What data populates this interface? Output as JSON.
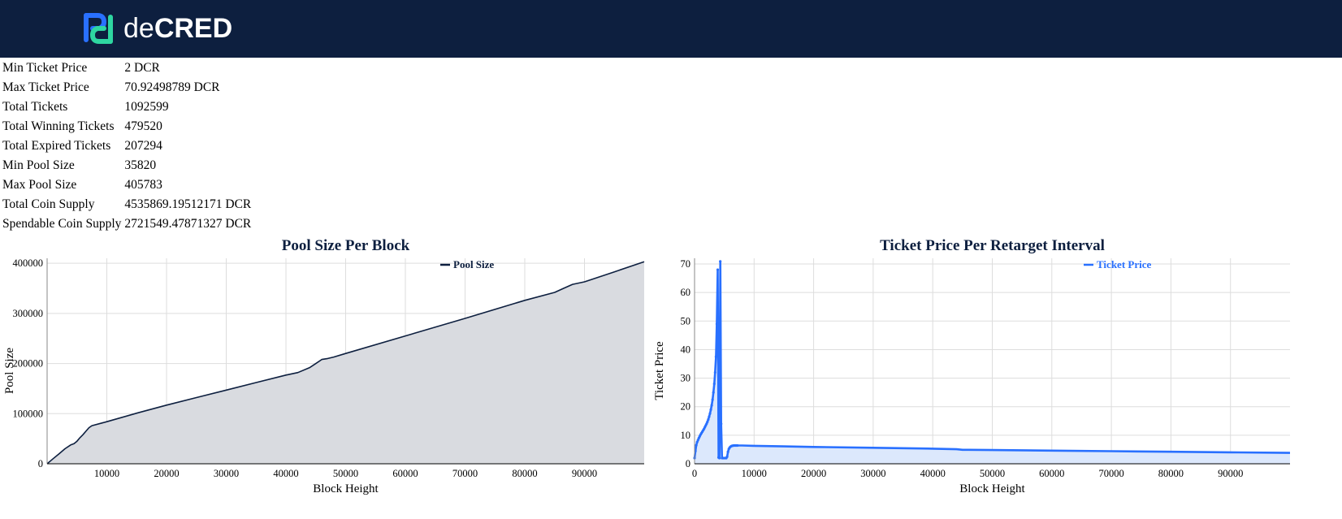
{
  "header": {
    "logo_text": "decred",
    "logo_text_light": "de",
    "logo_text_bold": "CRED",
    "logo_colors": {
      "blue": "#2970ff",
      "teal": "#2ed6a1"
    },
    "background": "#0d1f3f"
  },
  "stats": [
    {
      "label": "Min Ticket Price",
      "value": "2 DCR"
    },
    {
      "label": "Max Ticket Price",
      "value": "70.92498789 DCR"
    },
    {
      "label": "Total Tickets",
      "value": "1092599"
    },
    {
      "label": "Total Winning Tickets",
      "value": "479520"
    },
    {
      "label": "Total Expired Tickets",
      "value": "207294"
    },
    {
      "label": "Min Pool Size",
      "value": "35820"
    },
    {
      "label": "Max Pool Size",
      "value": "405783"
    },
    {
      "label": "Total Coin Supply",
      "value": "4535869.19512171 DCR"
    },
    {
      "label": "Spendable Coin Supply",
      "value": "2721549.47871327 DCR"
    }
  ],
  "chart_data": [
    {
      "type": "area",
      "title": "Pool Size Per Block",
      "xlabel": "Block Height",
      "ylabel": "Pool Size",
      "xlim": [
        0,
        100000
      ],
      "ylim": [
        0,
        410000
      ],
      "xticks": [
        10000,
        20000,
        30000,
        40000,
        50000,
        60000,
        70000,
        80000,
        90000
      ],
      "yticks": [
        0,
        100000,
        200000,
        300000,
        400000
      ],
      "grid": true,
      "legend_position": "top-right",
      "series": [
        {
          "name": "Pool Size",
          "color": "#0d1f3f",
          "fill": "#d9dbe0",
          "x": [
            0,
            1000,
            2000,
            3000,
            4000,
            4500,
            5000,
            5500,
            6000,
            6500,
            7000,
            7500,
            10000,
            15000,
            20000,
            25000,
            30000,
            35000,
            40000,
            42000,
            44000,
            45000,
            46000,
            47000,
            48000,
            50000,
            60000,
            70000,
            80000,
            85000,
            86500,
            88000,
            90000,
            95000,
            100000
          ],
          "values": [
            0,
            10000,
            20000,
            30000,
            38000,
            40000,
            45000,
            52000,
            58000,
            65000,
            72000,
            76000,
            84000,
            101000,
            117000,
            132000,
            147000,
            162000,
            177000,
            182000,
            192000,
            200000,
            208000,
            210000,
            213000,
            220000,
            255000,
            290000,
            326000,
            342000,
            350000,
            358000,
            363000,
            383000,
            403000
          ]
        }
      ]
    },
    {
      "type": "line",
      "title": "Ticket Price Per Retarget Interval",
      "xlabel": "Block Height",
      "ylabel": "Ticket Price",
      "xlim": [
        0,
        100000
      ],
      "ylim": [
        0,
        72
      ],
      "xticks": [
        0,
        10000,
        20000,
        30000,
        40000,
        50000,
        60000,
        70000,
        80000,
        90000
      ],
      "yticks": [
        0,
        10,
        20,
        30,
        40,
        50,
        60,
        70
      ],
      "grid": true,
      "legend_position": "top-right",
      "series": [
        {
          "name": "Ticket Price",
          "color": "#2970ff",
          "fill": "#dce8fc",
          "x": [
            0,
            144,
            288,
            432,
            576,
            720,
            864,
            1008,
            1152,
            1296,
            1440,
            1584,
            1728,
            1872,
            2016,
            2160,
            2304,
            2448,
            2592,
            2736,
            2880,
            3024,
            3168,
            3312,
            3456,
            3600,
            3744,
            3888,
            4032,
            4176,
            4320,
            4464,
            4608,
            4752,
            4896,
            5040,
            5184,
            5328,
            5472,
            5616,
            5760,
            5904,
            6048,
            6192,
            6336,
            6480,
            6624,
            6768,
            6912,
            7056,
            7200,
            8000,
            10000,
            15000,
            20000,
            30000,
            40000,
            44000,
            45000,
            46000,
            50000,
            60000,
            70000,
            80000,
            90000,
            100000
          ],
          "values": [
            2,
            4.5,
            6.5,
            7.6,
            8.3,
            9.0,
            9.6,
            10.2,
            10.7,
            11.2,
            11.7,
            12.2,
            12.8,
            13.4,
            14.0,
            14.7,
            15.5,
            16.5,
            17.6,
            19.0,
            20.5,
            22.5,
            25.0,
            28.0,
            32.0,
            37.5,
            49.0,
            68.0,
            2.2,
            2.0,
            70.9,
            14.0,
            2.0,
            2.0,
            2.0,
            2.0,
            2.0,
            2.0,
            2.5,
            4.2,
            5.2,
            5.7,
            6.0,
            6.2,
            6.3,
            6.35,
            6.4,
            6.4,
            6.4,
            6.4,
            6.4,
            6.4,
            6.3,
            6.1,
            5.9,
            5.6,
            5.3,
            5.1,
            4.9,
            4.9,
            4.8,
            4.6,
            4.4,
            4.2,
            4.0,
            3.8
          ]
        }
      ]
    }
  ]
}
